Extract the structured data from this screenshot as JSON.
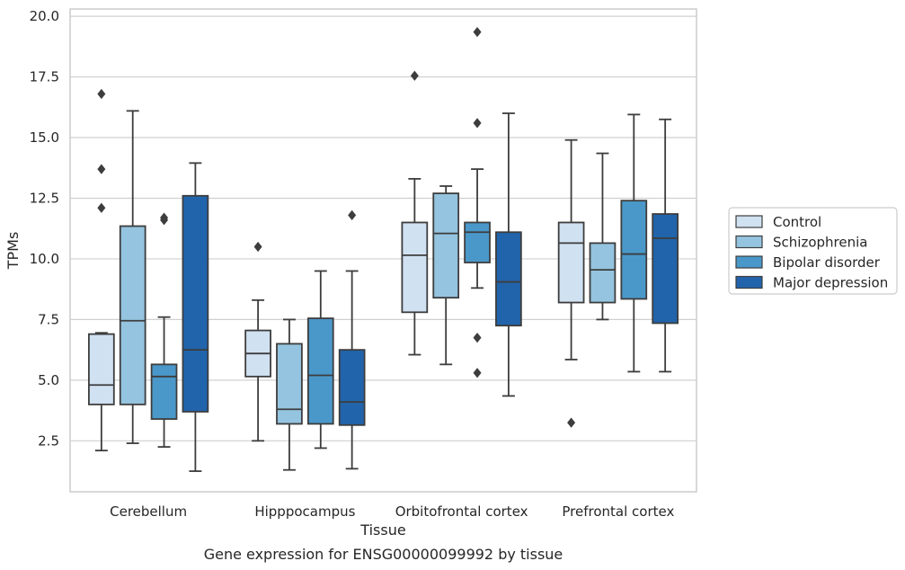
{
  "chart_data": {
    "type": "boxplot",
    "caption": "Gene expression for ENSG00000099992 by tissue",
    "xlabel": "Tissue",
    "ylabel": "TPMs",
    "ylim": [
      0.4,
      20.3
    ],
    "yticks": [
      2.5,
      5.0,
      7.5,
      10.0,
      12.5,
      15.0,
      17.5,
      20.0
    ],
    "ytick_labels": [
      "2.5",
      "5.0",
      "7.5",
      "10.0",
      "12.5",
      "15.0",
      "17.5",
      "20.0"
    ],
    "grid": true,
    "legend_position": "right",
    "categories": [
      "Cerebellum",
      "Hipppocampus",
      "Orbitofrontal cortex",
      "Prefrontal cortex"
    ],
    "series": [
      {
        "name": "Control",
        "color": "#d0e1f2",
        "boxes": [
          {
            "whislo": 2.1,
            "q1": 4.0,
            "med": 4.8,
            "q3": 6.9,
            "whishi": 6.95,
            "fliers": [
              16.8,
              13.7,
              12.1
            ]
          },
          {
            "whislo": 2.5,
            "q1": 5.15,
            "med": 6.1,
            "q3": 7.05,
            "whishi": 8.3,
            "fliers": [
              10.5
            ]
          },
          {
            "whislo": 6.05,
            "q1": 7.8,
            "med": 10.15,
            "q3": 11.5,
            "whishi": 13.3,
            "fliers": [
              17.55
            ]
          },
          {
            "whislo": 5.85,
            "q1": 8.2,
            "med": 10.65,
            "q3": 11.5,
            "whishi": 14.9,
            "fliers": [
              3.25
            ]
          }
        ]
      },
      {
        "name": "Schizophrenia",
        "color": "#94c4df",
        "boxes": [
          {
            "whislo": 2.4,
            "q1": 4.0,
            "med": 7.45,
            "q3": 11.35,
            "whishi": 16.1,
            "fliers": []
          },
          {
            "whislo": 1.3,
            "q1": 3.2,
            "med": 3.8,
            "q3": 6.5,
            "whishi": 7.5,
            "fliers": []
          },
          {
            "whislo": 5.65,
            "q1": 8.4,
            "med": 11.05,
            "q3": 12.7,
            "whishi": 13.0,
            "fliers": []
          },
          {
            "whislo": 7.5,
            "q1": 8.2,
            "med": 9.55,
            "q3": 10.65,
            "whishi": 14.35,
            "fliers": []
          }
        ]
      },
      {
        "name": "Bipolar disorder",
        "color": "#4a98c9",
        "boxes": [
          {
            "whislo": 2.25,
            "q1": 3.4,
            "med": 5.15,
            "q3": 5.65,
            "whishi": 7.6,
            "fliers": [
              11.6,
              11.7
            ]
          },
          {
            "whislo": 2.2,
            "q1": 3.2,
            "med": 5.2,
            "q3": 7.55,
            "whishi": 9.5,
            "fliers": []
          },
          {
            "whislo": 8.8,
            "q1": 9.85,
            "med": 11.1,
            "q3": 11.5,
            "whishi": 13.7,
            "fliers": [
              19.35,
              15.6,
              6.75,
              5.3
            ]
          },
          {
            "whislo": 5.35,
            "q1": 8.35,
            "med": 10.2,
            "q3": 12.4,
            "whishi": 15.95,
            "fliers": []
          }
        ]
      },
      {
        "name": "Major depression",
        "color": "#2164ab",
        "boxes": [
          {
            "whislo": 1.25,
            "q1": 3.7,
            "med": 6.25,
            "q3": 12.6,
            "whishi": 13.95,
            "fliers": []
          },
          {
            "whislo": 1.35,
            "q1": 3.15,
            "med": 4.1,
            "q3": 6.25,
            "whishi": 9.5,
            "fliers": [
              11.8
            ]
          },
          {
            "whislo": 4.35,
            "q1": 7.25,
            "med": 9.05,
            "q3": 11.1,
            "whishi": 16.0,
            "fliers": []
          },
          {
            "whislo": 5.35,
            "q1": 7.35,
            "med": 10.85,
            "q3": 11.85,
            "whishi": 15.75,
            "fliers": []
          }
        ]
      }
    ]
  }
}
